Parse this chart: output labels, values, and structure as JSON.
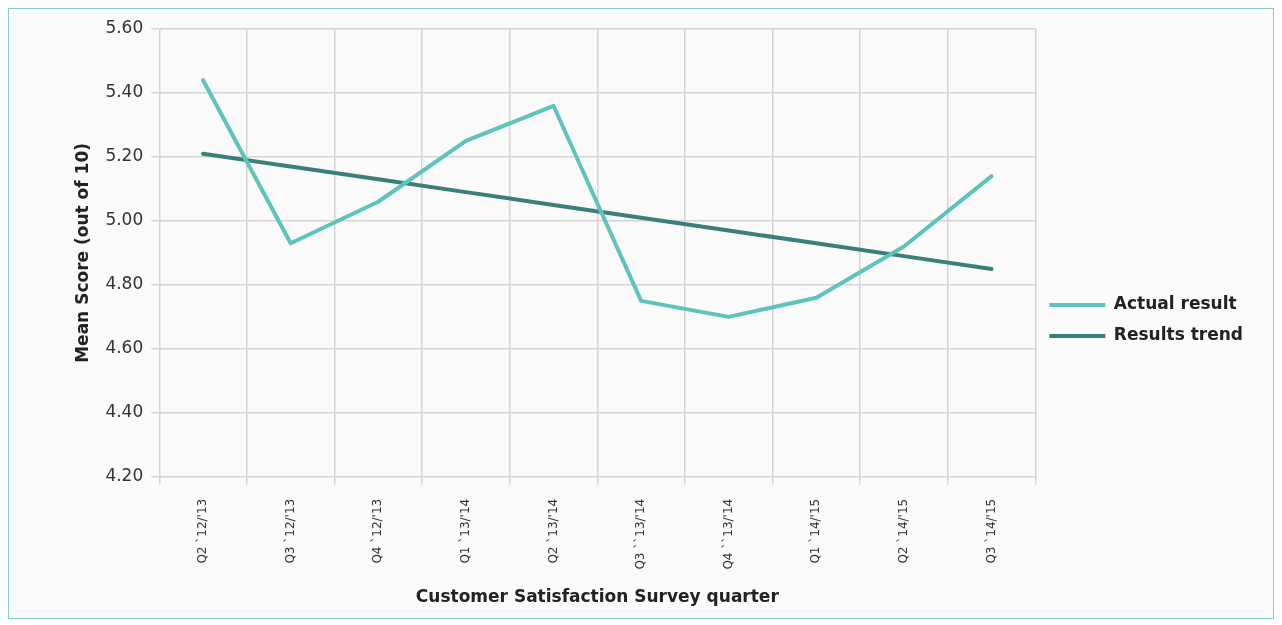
{
  "chart_data": {
    "type": "line",
    "xlabel": "Customer Satisfaction Survey quarter",
    "ylabel": "Mean Score (out of 10)",
    "categories": [
      "Q2 `12/'13",
      "Q3 `12/'13",
      "Q4 `12/'13",
      "Q1 `13/'14",
      "Q2 `13/'14",
      "Q3 ``13/'14",
      "Q4 ``13/'14",
      "Q1 `14/'15",
      "Q2 `14/'15",
      "Q3 `14/'15"
    ],
    "series": [
      {
        "name": "Actual result",
        "color": "#5ec4bb",
        "values": [
          5.44,
          4.93,
          5.06,
          5.25,
          5.36,
          4.75,
          4.7,
          4.76,
          4.92,
          5.14
        ]
      },
      {
        "name": "Results trend",
        "color": "#3a7f7c",
        "values": [
          5.21,
          5.17,
          5.13,
          5.09,
          5.05,
          5.01,
          4.97,
          4.93,
          4.89,
          4.85
        ]
      }
    ],
    "ylim": [
      4.2,
      5.6
    ],
    "yticks": [
      {
        "value": 4.2,
        "label": "4.20"
      },
      {
        "value": 4.4,
        "label": "4.40"
      },
      {
        "value": 4.6,
        "label": "4.60"
      },
      {
        "value": 4.8,
        "label": "4.80"
      },
      {
        "value": 5.0,
        "label": "5.00"
      },
      {
        "value": 5.2,
        "label": "5.20"
      },
      {
        "value": 5.4,
        "label": "5.40"
      },
      {
        "value": 5.6,
        "label": "5.60"
      }
    ],
    "grid": true,
    "legend": "right",
    "marker": "none",
    "line_style": "solid"
  }
}
